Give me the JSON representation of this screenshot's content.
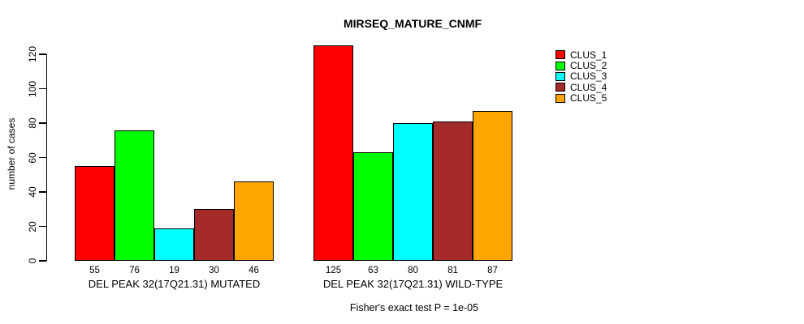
{
  "chart_data": {
    "type": "bar",
    "title": "MIRSEQ_MATURE_CNMF",
    "ylabel": "number of cases",
    "ylim": [
      0,
      120
    ],
    "yticks": [
      0,
      20,
      40,
      60,
      80,
      100,
      120
    ],
    "grid": false,
    "legend_position": "right",
    "legend": [
      {
        "name": "CLUS_1",
        "color": "#FF0000"
      },
      {
        "name": "CLUS_2",
        "color": "#00FF00"
      },
      {
        "name": "CLUS_3",
        "color": "#00FFFF"
      },
      {
        "name": "CLUS_4",
        "color": "#A52A2A"
      },
      {
        "name": "CLUS_5",
        "color": "#FFA500"
      }
    ],
    "groups": [
      {
        "label": "DEL PEAK 32(17Q21.31) MUTATED",
        "values": [
          55,
          76,
          19,
          30,
          46
        ]
      },
      {
        "label": "DEL PEAK 32(17Q21.31) WILD-TYPE",
        "values": [
          125,
          63,
          80,
          81,
          87
        ]
      }
    ],
    "footnote": "Fisher's exact test P = 1e-05"
  }
}
